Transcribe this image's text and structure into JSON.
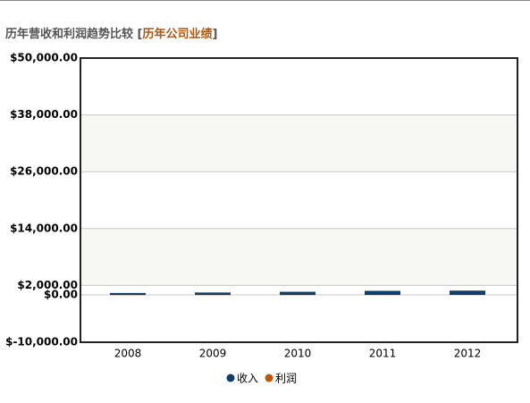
{
  "header": {
    "title": "历年营收和利润趋势比较",
    "open": "[",
    "link": "历年公司业绩",
    "close": "]"
  },
  "chart_data": {
    "type": "bar",
    "categories": [
      "2008",
      "2009",
      "2010",
      "2011",
      "2012"
    ],
    "series": [
      {
        "name": "收入",
        "color": "#0e3e6c",
        "values": [
          400,
          500,
          650,
          850,
          900
        ]
      },
      {
        "name": "利润",
        "color": "#c0540a",
        "values": [
          40,
          50,
          60,
          70,
          80
        ]
      }
    ],
    "ylim": [
      -10000,
      50000
    ],
    "yticks": [
      {
        "value": -10000,
        "label": "$-10,000.00"
      },
      {
        "value": 0,
        "label": "$0.00"
      },
      {
        "value": 2000,
        "label": "$2,000.00"
      },
      {
        "value": 14000,
        "label": "$14,000.00"
      },
      {
        "value": 26000,
        "label": "$26,000.00"
      },
      {
        "value": 38000,
        "label": "$38,000.00"
      },
      {
        "value": 50000,
        "label": "$50,000.00"
      }
    ],
    "grid": true
  }
}
